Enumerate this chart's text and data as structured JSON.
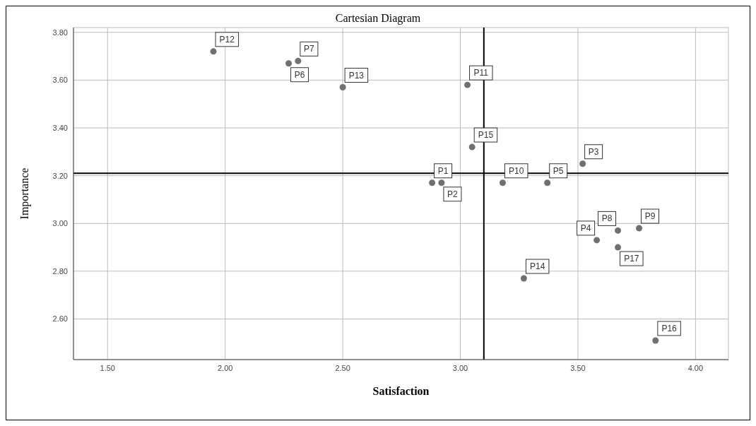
{
  "chart_data": {
    "type": "scatter",
    "title": "Cartesian Diagram",
    "xlabel": "Satisfaction",
    "ylabel": "Importance",
    "x": [
      2.88,
      2.92,
      3.52,
      3.58,
      3.37,
      2.27,
      2.31,
      3.67,
      3.76,
      3.18,
      3.03,
      1.95,
      2.5,
      3.27,
      3.05,
      3.83,
      3.67
    ],
    "values": [
      3.17,
      3.17,
      3.25,
      2.93,
      3.17,
      3.67,
      3.68,
      2.97,
      2.98,
      3.17,
      3.58,
      3.72,
      3.57,
      2.77,
      3.32,
      2.51,
      2.9
    ],
    "color": "#707070",
    "marker": "circle",
    "grid": true,
    "xlim": [
      1.355,
      4.14
    ],
    "xticks": [
      {
        "value": 1.5,
        "label": "1.50"
      },
      {
        "value": 2,
        "label": "2.00"
      },
      {
        "value": 2.5,
        "label": "2.50"
      },
      {
        "value": 3,
        "label": "3.00"
      },
      {
        "value": 3.5,
        "label": "3.50"
      },
      {
        "value": 4,
        "label": "4.00"
      }
    ],
    "ylim": [
      2.43,
      3.82
    ],
    "yticks": [
      {
        "value": 2.6,
        "label": "2.60"
      },
      {
        "value": 2.8,
        "label": "2.80"
      },
      {
        "value": 3,
        "label": "3.00"
      },
      {
        "value": 3.2,
        "label": "3.20"
      },
      {
        "value": 3.4,
        "label": "3.40"
      },
      {
        "value": 3.6,
        "label": "3.60"
      },
      {
        "value": 3.8,
        "label": "3.80"
      }
    ],
    "ref_lines": [
      {
        "axis": "x",
        "value": 3.1,
        "color": "#000000"
      },
      {
        "axis": "y",
        "value": 3.21,
        "color": "#000000"
      }
    ],
    "annotations": [
      {
        "text": "P1",
        "x": 2.88,
        "y": 3.17
      },
      {
        "text": "P2",
        "x": 2.92,
        "y": 3.17
      },
      {
        "text": "P3",
        "x": 3.52,
        "y": 3.25
      },
      {
        "text": "P4",
        "x": 3.58,
        "y": 2.93
      },
      {
        "text": "P5",
        "x": 3.37,
        "y": 3.17
      },
      {
        "text": "P6",
        "x": 2.27,
        "y": 3.67
      },
      {
        "text": "P7",
        "x": 2.31,
        "y": 3.68
      },
      {
        "text": "P8",
        "x": 3.67,
        "y": 2.97
      },
      {
        "text": "P9",
        "x": 3.76,
        "y": 2.98
      },
      {
        "text": "P10",
        "x": 3.18,
        "y": 3.17
      },
      {
        "text": "P11",
        "x": 3.03,
        "y": 3.58
      },
      {
        "text": "P12",
        "x": 1.95,
        "y": 3.72
      },
      {
        "text": "P13",
        "x": 2.5,
        "y": 3.57
      },
      {
        "text": "P14",
        "x": 3.27,
        "y": 2.77
      },
      {
        "text": "P15",
        "x": 3.05,
        "y": 3.32
      },
      {
        "text": "P16",
        "x": 3.83,
        "y": 2.51
      },
      {
        "text": "P17",
        "x": 3.67,
        "y": 2.9
      }
    ]
  }
}
